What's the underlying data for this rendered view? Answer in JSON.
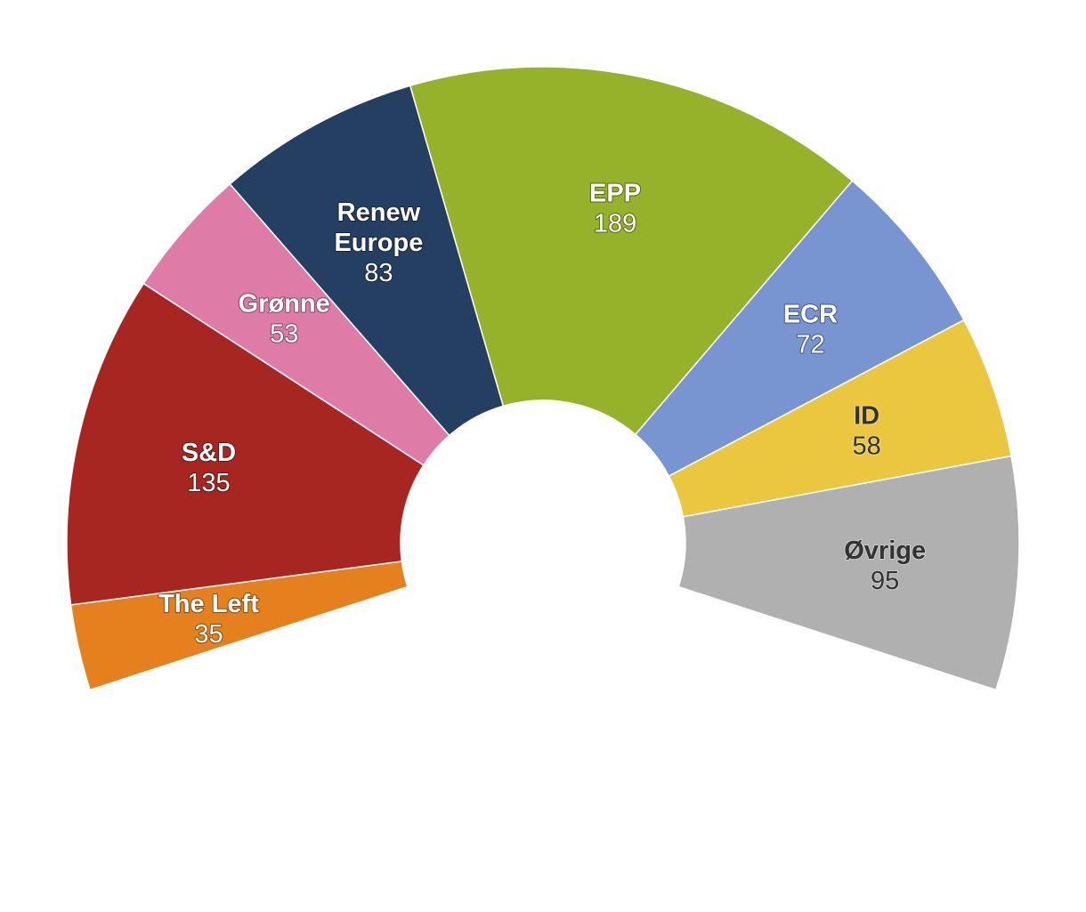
{
  "chart_data": {
    "type": "pie",
    "title": "",
    "subtitle": "",
    "start_angle_deg": -108,
    "end_angle_deg": 108,
    "segments": [
      {
        "name": "The Left",
        "value": 35,
        "color": "#e5801e",
        "label_color": "#ffffff"
      },
      {
        "name": "S&D",
        "value": 135,
        "color": "#a72621",
        "label_color": "#ffffff"
      },
      {
        "name": "Grønne",
        "value": 53,
        "color": "#de7ba6",
        "label_color": "#ffffff"
      },
      {
        "name": "Renew Europe",
        "name_lines": [
          "Renew",
          "Europe"
        ],
        "value": 83,
        "color": "#253f62",
        "label_color": "#ffffff"
      },
      {
        "name": "EPP",
        "value": 189,
        "color": "#95b22a",
        "label_color": "#ffffff"
      },
      {
        "name": "ECR",
        "value": 72,
        "color": "#7895d2",
        "label_color": "#ffffff"
      },
      {
        "name": "ID",
        "value": 58,
        "color": "#eac73f",
        "label_color": "#333333"
      },
      {
        "name": "Øvrige",
        "value": 95,
        "color": "#b0b0b0",
        "label_color": "#333333"
      }
    ]
  }
}
